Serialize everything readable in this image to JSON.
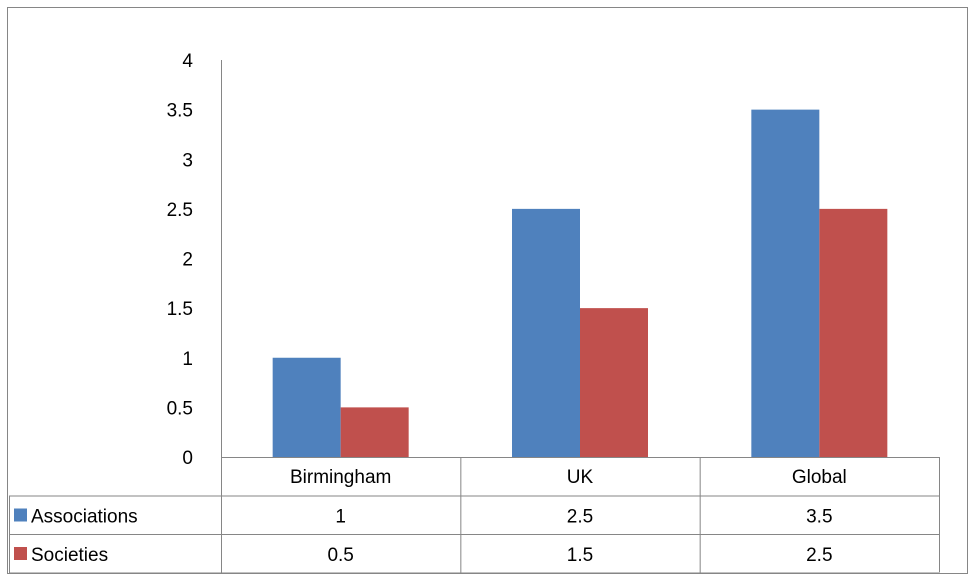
{
  "chart_data": {
    "type": "bar",
    "categories": [
      "Birmingham",
      "UK",
      "Global"
    ],
    "series": [
      {
        "name": "Associations",
        "values": [
          1,
          2.5,
          3.5
        ],
        "color": "#4F81BD"
      },
      {
        "name": "Societies",
        "values": [
          0.5,
          1.5,
          2.5
        ],
        "color": "#C0504D"
      }
    ],
    "ylim": [
      0,
      4
    ],
    "yticks": [
      0,
      0.5,
      1,
      1.5,
      2,
      2.5,
      3,
      3.5,
      4
    ],
    "ytick_labels": [
      "0",
      "0.5",
      "1",
      "1.5",
      "2",
      "2.5",
      "3",
      "3.5",
      "4"
    ],
    "data_table": {
      "rows": [
        {
          "label": "Associations",
          "cells": [
            "1",
            "2.5",
            "3.5"
          ]
        },
        {
          "label": "Societies",
          "cells": [
            "0.5",
            "1.5",
            "2.5"
          ]
        }
      ]
    },
    "title": "",
    "xlabel": "",
    "ylabel": "",
    "grid": false,
    "legend": "data-table"
  }
}
